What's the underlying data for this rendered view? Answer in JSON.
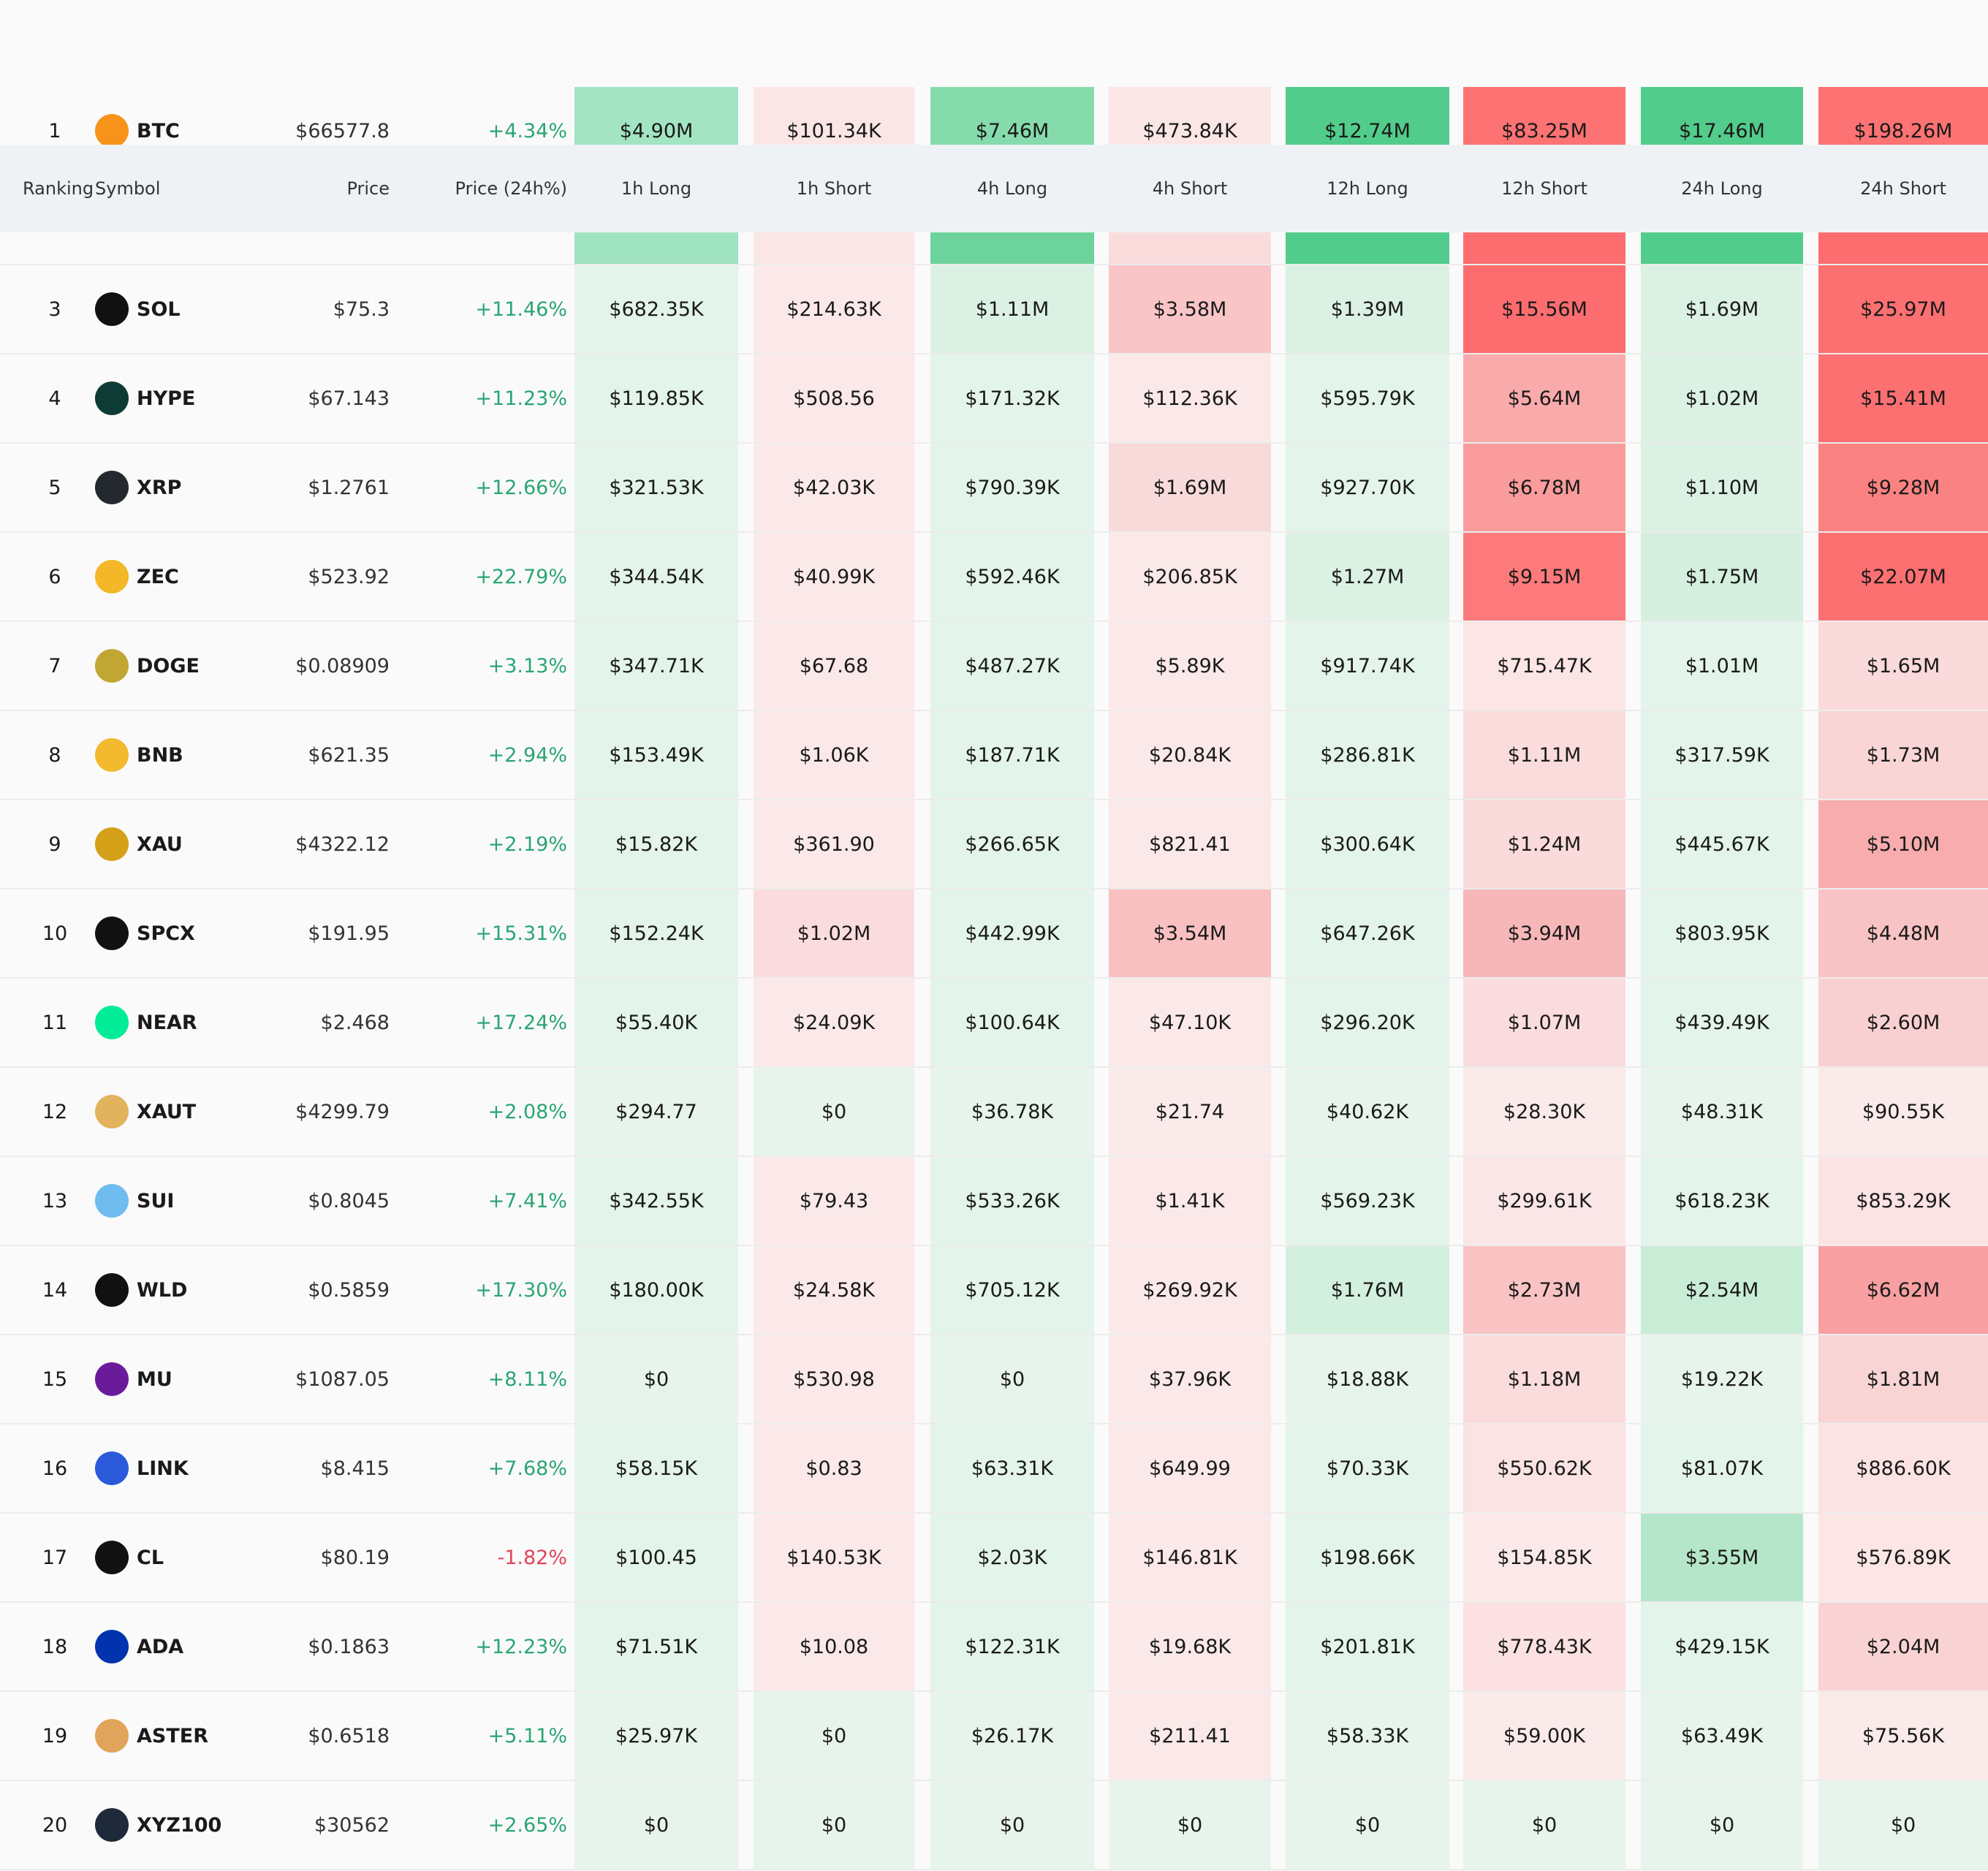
{
  "header": {
    "columns": [
      "Ranking",
      "Symbol",
      "Price",
      "Price (24h%)",
      "1h Long",
      "1h Short",
      "4h Long",
      "4h Short",
      "12h Long",
      "12h Short",
      "24h Long",
      "24h Short"
    ]
  },
  "rows": [
    {
      "rank": "1",
      "symbol": "BTC",
      "icon_color": "#f7931a",
      "price": "$66577.8",
      "change": "+4.34%",
      "values": [
        "$4.90M",
        "$101.34K",
        "$7.46M",
        "$473.84K",
        "$12.74M",
        "$83.25M",
        "$17.46M",
        "$198.26M"
      ],
      "colors": [
        "#a3e4c3",
        "#fbe6e6",
        "#86dbac",
        "#fbe6e6",
        "#52cc8b",
        "#fd7272",
        "#52cc8b",
        "#fd7272"
      ]
    },
    {
      "colors": [
        "#9fe3c0",
        "#fbe6e6",
        "#6dd39c",
        "#fadcdd",
        "#52cc8b",
        "#fd6d6f",
        "#52cc8b",
        "#fd6d6f"
      ]
    },
    {
      "rank": "3",
      "symbol": "SOL",
      "icon_color": "#111111",
      "price": "$75.3",
      "change": "+11.46%",
      "values": [
        "$682.35K",
        "$214.63K",
        "$1.11M",
        "$3.58M",
        "$1.39M",
        "$15.56M",
        "$1.69M",
        "$25.97M"
      ],
      "colors": [
        "#e3f4ea",
        "#fbe9e9",
        "#dbf1e4",
        "#f9c5c6",
        "#dbf1e4",
        "#fd6d6f",
        "#dbf1e4",
        "#fd7072"
      ]
    },
    {
      "rank": "4",
      "symbol": "HYPE",
      "icon_color": "#0f3b36",
      "price": "$67.143",
      "change": "+11.23%",
      "values": [
        "$119.85K",
        "$508.56",
        "$171.32K",
        "$112.36K",
        "$595.79K",
        "$5.64M",
        "$1.02M",
        "$15.41M"
      ],
      "colors": [
        "#e3f4ea",
        "#fbe9e9",
        "#e3f4ea",
        "#fbe9e9",
        "#e3f4ea",
        "#f9aaaa",
        "#dbf1e4",
        "#fd7072"
      ]
    },
    {
      "rank": "5",
      "symbol": "XRP",
      "icon_color": "#23292f",
      "price": "$1.2761",
      "change": "+12.66%",
      "values": [
        "$321.53K",
        "$42.03K",
        "$790.39K",
        "$1.69M",
        "$927.70K",
        "$6.78M",
        "$1.10M",
        "$9.28M"
      ],
      "colors": [
        "#e3f4ea",
        "#fbe9e9",
        "#e3f4ea",
        "#f9dada",
        "#e3f4ea",
        "#fa9c9c",
        "#dbf1e4",
        "#fb8282"
      ]
    },
    {
      "rank": "6",
      "symbol": "ZEC",
      "icon_color": "#f4b728",
      "price": "$523.92",
      "change": "+22.79%",
      "values": [
        "$344.54K",
        "$40.99K",
        "$592.46K",
        "$206.85K",
        "$1.27M",
        "$9.15M",
        "$1.75M",
        "$22.07M"
      ],
      "colors": [
        "#e3f4ea",
        "#fbe9e9",
        "#e3f4ea",
        "#fbe9e9",
        "#dbf1e4",
        "#fc7a7b",
        "#d5efdf",
        "#fd7072"
      ]
    },
    {
      "rank": "7",
      "symbol": "DOGE",
      "icon_color": "#c2a633",
      "price": "$0.08909",
      "change": "+3.13%",
      "values": [
        "$347.71K",
        "$67.68",
        "$487.27K",
        "$5.89K",
        "$917.74K",
        "$715.47K",
        "$1.01M",
        "$1.65M"
      ],
      "colors": [
        "#e3f4ea",
        "#fbe9e9",
        "#e3f4ea",
        "#fbe9e9",
        "#e3f4ea",
        "#fbe5e5",
        "#e3f4ea",
        "#fadadb"
      ]
    },
    {
      "rank": "8",
      "symbol": "BNB",
      "icon_color": "#f3ba2f",
      "price": "$621.35",
      "change": "+2.94%",
      "values": [
        "$153.49K",
        "$1.06K",
        "$187.71K",
        "$20.84K",
        "$286.81K",
        "$1.11M",
        "$317.59K",
        "$1.73M"
      ],
      "colors": [
        "#e3f4ea",
        "#fbe9e9",
        "#e3f4ea",
        "#fbe9e9",
        "#e3f4ea",
        "#fadcdd",
        "#e3f4ea",
        "#f9d5d5"
      ]
    },
    {
      "rank": "9",
      "symbol": "XAU",
      "icon_color": "#d4a017",
      "price": "$4322.12",
      "change": "+2.19%",
      "values": [
        "$15.82K",
        "$361.90",
        "$266.65K",
        "$821.41",
        "$300.64K",
        "$1.24M",
        "$445.67K",
        "$5.10M"
      ],
      "colors": [
        "#e3f4ea",
        "#fbe9e9",
        "#e3f4ea",
        "#fbe9e9",
        "#e3f4ea",
        "#fadada",
        "#e3f4ea",
        "#f8acad"
      ]
    },
    {
      "rank": "10",
      "symbol": "SPCX",
      "icon_color": "#111111",
      "price": "$191.95",
      "change": "+15.31%",
      "values": [
        "$152.24K",
        "$1.02M",
        "$442.99K",
        "$3.54M",
        "$647.26K",
        "$3.94M",
        "$803.95K",
        "$4.48M"
      ],
      "colors": [
        "#e3f4ea",
        "#fbdcde",
        "#e3f4ea",
        "#f9c0c1",
        "#e3f4ea",
        "#f7b7b8",
        "#e3f4ea",
        "#f8c3c4"
      ]
    },
    {
      "rank": "11",
      "symbol": "NEAR",
      "icon_color": "#00ec97",
      "price": "$2.468",
      "change": "+17.24%",
      "values": [
        "$55.40K",
        "$24.09K",
        "$100.64K",
        "$47.10K",
        "$296.20K",
        "$1.07M",
        "$439.49K",
        "$2.60M"
      ],
      "colors": [
        "#e3f4ea",
        "#fbe9e9",
        "#e3f4ea",
        "#fbe9e9",
        "#e3f4ea",
        "#fbdcde",
        "#e3f4ea",
        "#f9d0d1"
      ]
    },
    {
      "rank": "12",
      "symbol": "XAUT",
      "icon_color": "#e2b25c",
      "price": "$4299.79",
      "change": "+2.08%",
      "values": [
        "$294.77",
        "$0",
        "$36.78K",
        "$21.74",
        "$40.62K",
        "$28.30K",
        "$48.31K",
        "$90.55K"
      ],
      "colors": [
        "#e7f4ec",
        "#e7f4ec",
        "#e7f4ec",
        "#fbeaea",
        "#e7f4ec",
        "#fbeaea",
        "#e7f4ec",
        "#fbeaea"
      ]
    },
    {
      "rank": "13",
      "symbol": "SUI",
      "icon_color": "#6fbcf0",
      "price": "$0.8045",
      "change": "+7.41%",
      "values": [
        "$342.55K",
        "$79.43",
        "$533.26K",
        "$1.41K",
        "$569.23K",
        "$299.61K",
        "$618.23K",
        "$853.29K"
      ],
      "colors": [
        "#e3f4ea",
        "#fbe9e9",
        "#e3f4ea",
        "#fbe9e9",
        "#e3f4ea",
        "#fbe6e7",
        "#e3f4ea",
        "#fbe3e4"
      ]
    },
    {
      "rank": "14",
      "symbol": "WLD",
      "icon_color": "#111111",
      "price": "$0.5859",
      "change": "+17.30%",
      "values": [
        "$180.00K",
        "$24.58K",
        "$705.12K",
        "$269.92K",
        "$1.76M",
        "$2.73M",
        "$2.54M",
        "$6.62M"
      ],
      "colors": [
        "#e3f4ea",
        "#fbe9e9",
        "#e3f4ea",
        "#fbe9e9",
        "#d3efde",
        "#f9c3c4",
        "#c9ecd7",
        "#f8a0a1"
      ]
    },
    {
      "rank": "15",
      "symbol": "MU",
      "icon_color": "#6a1b9a",
      "price": "$1087.05",
      "change": "+8.11%",
      "values": [
        "$0",
        "$530.98",
        "$0",
        "$37.96K",
        "$18.88K",
        "$1.18M",
        "$19.22K",
        "$1.81M"
      ],
      "colors": [
        "#e7f4ec",
        "#fbe9e9",
        "#e7f4ec",
        "#fbe9e9",
        "#e7f4ec",
        "#fadcdd",
        "#e7f4ec",
        "#f9d4d5"
      ]
    },
    {
      "rank": "16",
      "symbol": "LINK",
      "icon_color": "#2a5ada",
      "price": "$8.415",
      "change": "+7.68%",
      "values": [
        "$58.15K",
        "$0.83",
        "$63.31K",
        "$649.99",
        "$70.33K",
        "$550.62K",
        "$81.07K",
        "$886.60K"
      ],
      "colors": [
        "#e3f4ea",
        "#fbe9e9",
        "#e3f4ea",
        "#fbe9e9",
        "#e3f4ea",
        "#fbe2e3",
        "#e3f4ea",
        "#fbe2e3"
      ]
    },
    {
      "rank": "17",
      "symbol": "CL",
      "icon_color": "#111111",
      "price": "$80.19",
      "change": "-1.82%",
      "values": [
        "$100.45",
        "$140.53K",
        "$2.03K",
        "$146.81K",
        "$198.66K",
        "$154.85K",
        "$3.55M",
        "$576.89K"
      ],
      "colors": [
        "#e3f4ea",
        "#fbe9e9",
        "#e3f4ea",
        "#fbe9e9",
        "#e3f4ea",
        "#fbe9e9",
        "#b5e6c9",
        "#fbe5e5"
      ]
    },
    {
      "rank": "18",
      "symbol": "ADA",
      "icon_color": "#0033ad",
      "price": "$0.1863",
      "change": "+12.23%",
      "values": [
        "$71.51K",
        "$10.08",
        "$122.31K",
        "$19.68K",
        "$201.81K",
        "$778.43K",
        "$429.15K",
        "$2.04M"
      ],
      "colors": [
        "#e3f4ea",
        "#fbe9e9",
        "#e3f4ea",
        "#fbe9e9",
        "#e3f4ea",
        "#fbe1e2",
        "#e3f4ea",
        "#f9d3d4"
      ]
    },
    {
      "rank": "19",
      "symbol": "ASTER",
      "icon_color": "#e0a45a",
      "price": "$0.6518",
      "change": "+5.11%",
      "values": [
        "$25.97K",
        "$0",
        "$26.17K",
        "$211.41",
        "$58.33K",
        "$59.00K",
        "$63.49K",
        "$75.56K"
      ],
      "colors": [
        "#e7f4ec",
        "#e7f4ec",
        "#e7f4ec",
        "#fbe9e9",
        "#e7f4ec",
        "#fbeaea",
        "#e7f4ec",
        "#fbeaea"
      ]
    },
    {
      "rank": "20",
      "symbol": "XYZ100",
      "icon_color": "#1e2a3a",
      "price": "$30562",
      "change": "+2.65%",
      "values": [
        "$0",
        "$0",
        "$0",
        "$0",
        "$0",
        "$0",
        "$0",
        "$0"
      ],
      "colors": [
        "#e7f4ec",
        "#e7f4ec",
        "#e7f4ec",
        "#e7f4ec",
        "#e7f4ec",
        "#e7f4ec",
        "#e7f4ec",
        "#e7f4ec"
      ]
    }
  ]
}
